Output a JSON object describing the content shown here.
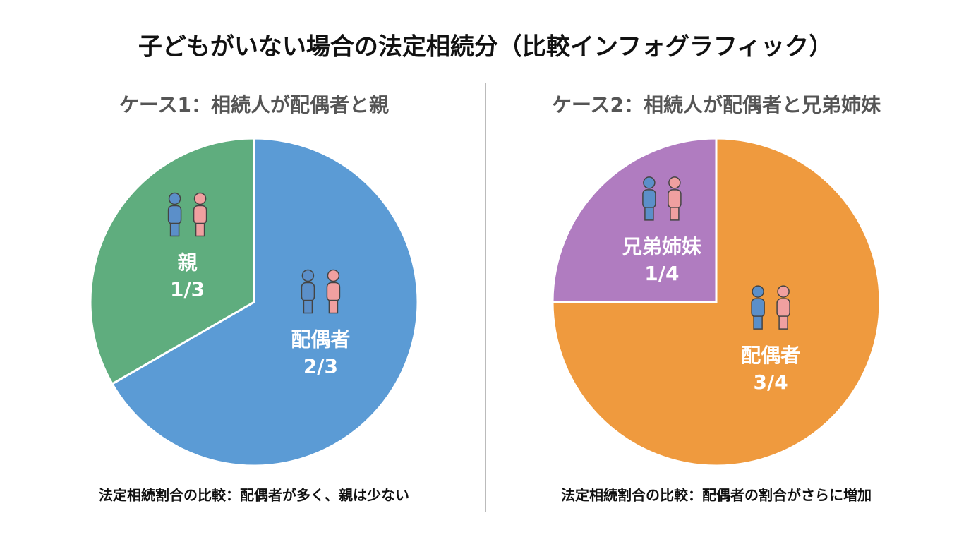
{
  "title": "子どもがいない場合の法定相続分（比較インフォグラフィック）",
  "chart_data": [
    {
      "type": "pie",
      "title": "ケース1：相続人が配偶者と親",
      "categories": [
        "配偶者",
        "親"
      ],
      "values": [
        0.6667,
        0.3333
      ],
      "value_labels": [
        "2/3",
        "1/3"
      ],
      "colors": [
        "#5b9bd5",
        "#5fad7e"
      ],
      "caption": "法定相続割合の比較：配偶者が多く、親は少ない"
    },
    {
      "type": "pie",
      "title": "ケース2：相続人が配偶者と兄弟姉妹",
      "categories": [
        "配偶者",
        "兄弟姉妹"
      ],
      "values": [
        0.75,
        0.25
      ],
      "value_labels": [
        "3/4",
        "1/4"
      ],
      "colors": [
        "#ef9a3e",
        "#b07cc0"
      ],
      "caption": "法定相続割合の比較：配偶者の割合がさらに増加"
    }
  ]
}
